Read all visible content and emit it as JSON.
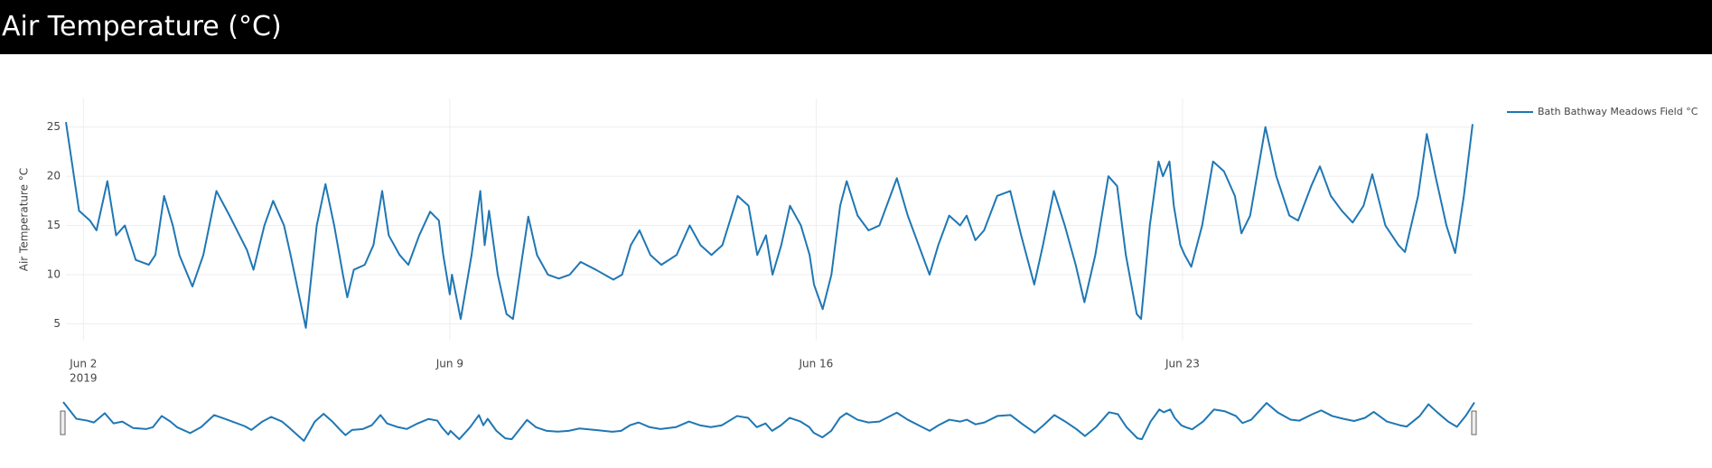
{
  "header": {
    "title": "Air Temperature (°C)"
  },
  "chart_data": {
    "type": "line",
    "y_label": "Air Temperature °C",
    "x": [
      "2019-06-01 16:00",
      "2019-06-01 22:00",
      "2019-06-02 03:00",
      "2019-06-02 06:00",
      "2019-06-02 11:00",
      "2019-06-02 15:00",
      "2019-06-02 19:00",
      "2019-06-03 00:00",
      "2019-06-03 06:00",
      "2019-06-03 09:00",
      "2019-06-03 13:00",
      "2019-06-03 17:00",
      "2019-06-03 20:00",
      "2019-06-04 02:00",
      "2019-06-04 07:00",
      "2019-06-04 13:00",
      "2019-06-04 19:00",
      "2019-06-05 03:00",
      "2019-06-05 06:00",
      "2019-06-05 11:00",
      "2019-06-05 15:00",
      "2019-06-05 20:00",
      "2019-06-05 23:00",
      "2019-06-06 06:00",
      "2019-06-06 11:00",
      "2019-06-06 15:00",
      "2019-06-06 19:00",
      "2019-06-06 23:00",
      "2019-06-07 01:00",
      "2019-06-07 04:00",
      "2019-06-07 09:00",
      "2019-06-07 13:00",
      "2019-06-07 17:00",
      "2019-06-07 20:00",
      "2019-06-08 01:00",
      "2019-06-08 05:00",
      "2019-06-08 10:00",
      "2019-06-08 15:00",
      "2019-06-08 19:00",
      "2019-06-08 21:00",
      "2019-06-09 00:00",
      "2019-06-09 01:00",
      "2019-06-09 05:00",
      "2019-06-09 10:00",
      "2019-06-09 14:00",
      "2019-06-09 16:00",
      "2019-06-09 18:00",
      "2019-06-09 22:00",
      "2019-06-10 02:00",
      "2019-06-10 05:00",
      "2019-06-10 12:00",
      "2019-06-10 16:00",
      "2019-06-10 21:00",
      "2019-06-11 02:00",
      "2019-06-11 07:00",
      "2019-06-11 12:00",
      "2019-06-11 19:00",
      "2019-06-12 03:00",
      "2019-06-12 07:00",
      "2019-06-12 11:00",
      "2019-06-12 15:00",
      "2019-06-12 20:00",
      "2019-06-13 01:00",
      "2019-06-13 08:00",
      "2019-06-13 14:00",
      "2019-06-13 19:00",
      "2019-06-14 00:00",
      "2019-06-14 05:00",
      "2019-06-14 12:00",
      "2019-06-14 17:00",
      "2019-06-14 21:00",
      "2019-06-15 01:00",
      "2019-06-15 04:00",
      "2019-06-15 08:00",
      "2019-06-15 12:00",
      "2019-06-15 17:00",
      "2019-06-15 21:00",
      "2019-06-15 23:00",
      "2019-06-16 03:00",
      "2019-06-16 07:00",
      "2019-06-16 11:00",
      "2019-06-16 14:00",
      "2019-06-16 19:00",
      "2019-06-17 00:00",
      "2019-06-17 05:00",
      "2019-06-17 13:00",
      "2019-06-17 18:00",
      "2019-06-17 23:00",
      "2019-06-18 04:00",
      "2019-06-18 08:00",
      "2019-06-18 13:00",
      "2019-06-18 18:00",
      "2019-06-18 21:00",
      "2019-06-19 01:00",
      "2019-06-19 05:00",
      "2019-06-19 11:00",
      "2019-06-19 17:00",
      "2019-06-19 22:00",
      "2019-06-20 04:00",
      "2019-06-20 08:00",
      "2019-06-20 13:00",
      "2019-06-20 18:00",
      "2019-06-20 23:00",
      "2019-06-21 03:00",
      "2019-06-21 08:00",
      "2019-06-21 14:00",
      "2019-06-21 18:00",
      "2019-06-21 22:00",
      "2019-06-22 03:00",
      "2019-06-22 05:00",
      "2019-06-22 09:00",
      "2019-06-22 13:00",
      "2019-06-22 15:00",
      "2019-06-22 18:00",
      "2019-06-22 20:00",
      "2019-06-22 23:00",
      "2019-06-23 01:00",
      "2019-06-23 04:00",
      "2019-06-23 09:00",
      "2019-06-23 14:00",
      "2019-06-23 19:00",
      "2019-06-24 00:00",
      "2019-06-24 03:00",
      "2019-06-24 07:00",
      "2019-06-24 14:00",
      "2019-06-24 19:00",
      "2019-06-25 01:00",
      "2019-06-25 05:00",
      "2019-06-25 11:00",
      "2019-06-25 15:00",
      "2019-06-25 20:00",
      "2019-06-26 01:00",
      "2019-06-26 06:00",
      "2019-06-26 11:00",
      "2019-06-26 15:00",
      "2019-06-26 21:00",
      "2019-06-27 03:00",
      "2019-06-27 06:00",
      "2019-06-27 12:00",
      "2019-06-27 16:00",
      "2019-06-27 20:00",
      "2019-06-28 01:00",
      "2019-06-28 05:00",
      "2019-06-28 09:00",
      "2019-06-28 13:00"
    ],
    "series": [
      {
        "name": "Bath Bathway Meadows Field °C",
        "color": "#1f77b4",
        "values": [
          25.5,
          16.5,
          15.5,
          14.5,
          19.5,
          14,
          15,
          11.5,
          11,
          12,
          18,
          15,
          12,
          8.8,
          12,
          18.5,
          16,
          12.5,
          10.5,
          15,
          17.5,
          15,
          12,
          4.6,
          15,
          19.2,
          15,
          10,
          7.7,
          10.5,
          11,
          13,
          18.5,
          14,
          12,
          11,
          14,
          16.4,
          15.5,
          12,
          8,
          10,
          5.5,
          12,
          18.5,
          13,
          16.5,
          10,
          6,
          5.5,
          15.9,
          12,
          10,
          9.6,
          10,
          11.3,
          10.5,
          9.5,
          10,
          13,
          14.5,
          12,
          11,
          12,
          15,
          13,
          12,
          13,
          18,
          17,
          12,
          14,
          10,
          13,
          17,
          15,
          12,
          9,
          6.5,
          10,
          17,
          19.5,
          16,
          14.5,
          15,
          19.8,
          16,
          13,
          10,
          13,
          16,
          15,
          16,
          13.5,
          14.5,
          18,
          18.5,
          14,
          9,
          13,
          18.5,
          15,
          11,
          7.2,
          12,
          20,
          19,
          12,
          6,
          5.5,
          15,
          21.5,
          20,
          21.5,
          17,
          13,
          12,
          10.8,
          15,
          21.5,
          20.5,
          18,
          14.2,
          16,
          25,
          20,
          16,
          15.5,
          19,
          21,
          18,
          16.5,
          15.3,
          17,
          20.2,
          15,
          13,
          12.3,
          18,
          24.3,
          20,
          15,
          12.2,
          18,
          25.3
        ]
      }
    ],
    "xlim": [
      "2019-06-01 16:00",
      "2019-06-28 13:00"
    ],
    "xticks": [
      {
        "value": "2019-06-02 00:00",
        "label": "Jun 2",
        "year": "2019"
      },
      {
        "value": "2019-06-09 00:00",
        "label": "Jun 9"
      },
      {
        "value": "2019-06-16 00:00",
        "label": "Jun 16"
      },
      {
        "value": "2019-06-23 00:00",
        "label": "Jun 23"
      }
    ],
    "ylim": [
      3.3,
      27.9
    ],
    "yticks": [
      5,
      10,
      15,
      20,
      25
    ],
    "grid": true,
    "legend": "top-right",
    "range_slider": true
  }
}
